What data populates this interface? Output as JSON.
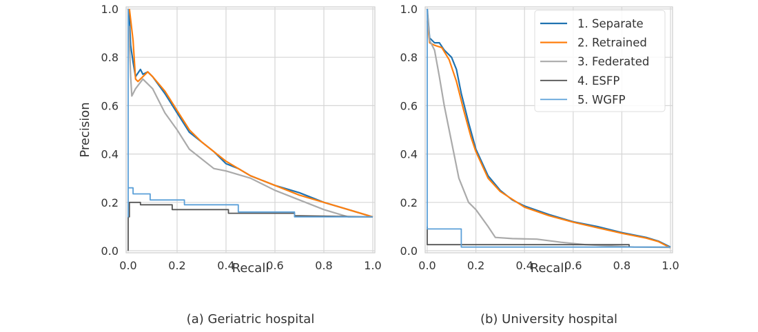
{
  "chart_data": [
    {
      "type": "line",
      "title": "(a) Geriatric hospital",
      "xlabel": "Recall",
      "ylabel": "Precision",
      "xlim": [
        0,
        1
      ],
      "ylim": [
        0,
        1
      ],
      "xticks": [
        "0.0",
        "0.2",
        "0.4",
        "0.6",
        "0.8",
        "1.0"
      ],
      "yticks": [
        "0.0",
        "0.2",
        "0.4",
        "0.6",
        "0.8",
        "1.0"
      ],
      "grid": true,
      "series": [
        {
          "name": "1. Separate",
          "color": "#1f72b0",
          "x": [
            0.003,
            0.01,
            0.02,
            0.03,
            0.05,
            0.06,
            0.08,
            0.1,
            0.15,
            0.2,
            0.25,
            0.3,
            0.35,
            0.4,
            0.45,
            0.5,
            0.6,
            0.7,
            0.8,
            0.9,
            1.0
          ],
          "y": [
            1.0,
            0.85,
            0.78,
            0.72,
            0.75,
            0.73,
            0.74,
            0.72,
            0.65,
            0.57,
            0.49,
            0.45,
            0.41,
            0.36,
            0.34,
            0.31,
            0.27,
            0.24,
            0.2,
            0.17,
            0.14
          ]
        },
        {
          "name": "2. Retrained",
          "color": "#ff7f0e",
          "x": [
            0.005,
            0.02,
            0.03,
            0.04,
            0.06,
            0.08,
            0.1,
            0.15,
            0.2,
            0.25,
            0.3,
            0.35,
            0.4,
            0.45,
            0.5,
            0.6,
            0.7,
            0.8,
            0.9,
            1.0
          ],
          "y": [
            1.0,
            0.87,
            0.71,
            0.7,
            0.72,
            0.74,
            0.72,
            0.66,
            0.58,
            0.5,
            0.45,
            0.41,
            0.37,
            0.34,
            0.31,
            0.27,
            0.23,
            0.2,
            0.17,
            0.14
          ]
        },
        {
          "name": "3. Federated",
          "color": "#aaaaaa",
          "x": [
            0.003,
            0.01,
            0.015,
            0.03,
            0.06,
            0.1,
            0.15,
            0.2,
            0.25,
            0.3,
            0.35,
            0.4,
            0.5,
            0.6,
            0.7,
            0.8,
            0.9,
            1.0
          ],
          "y": [
            0.93,
            0.72,
            0.64,
            0.67,
            0.71,
            0.67,
            0.57,
            0.5,
            0.42,
            0.38,
            0.34,
            0.33,
            0.3,
            0.25,
            0.21,
            0.17,
            0.14,
            0.14
          ]
        },
        {
          "name": "4. ESFP",
          "color": "#555555",
          "x": [
            0.0,
            0.0,
            0.005,
            0.005,
            0.01,
            0.01,
            0.05,
            0.05,
            0.18,
            0.18,
            0.41,
            0.41,
            0.68,
            0.68,
            1.0
          ],
          "y": [
            0.0,
            0.14,
            0.14,
            0.2,
            0.2,
            0.2,
            0.2,
            0.19,
            0.19,
            0.17,
            0.17,
            0.155,
            0.155,
            0.145,
            0.14
          ]
        },
        {
          "name": "5. WGFP",
          "color": "#5a9fd8",
          "x": [
            0.0,
            0.0,
            0.0,
            0.02,
            0.02,
            0.09,
            0.09,
            0.23,
            0.23,
            0.45,
            0.45,
            0.68,
            0.68,
            1.0
          ],
          "y": [
            1.0,
            0.14,
            0.26,
            0.26,
            0.235,
            0.235,
            0.21,
            0.21,
            0.19,
            0.19,
            0.16,
            0.16,
            0.14,
            0.14
          ]
        }
      ]
    },
    {
      "type": "line",
      "title": "(b) University hospital",
      "xlabel": "Recall",
      "ylabel": "",
      "xlim": [
        0,
        1
      ],
      "ylim": [
        0,
        1
      ],
      "xticks": [
        "0.0",
        "0.2",
        "0.4",
        "0.6",
        "0.8",
        "1.0"
      ],
      "yticks": [
        "0.0",
        "0.2",
        "0.4",
        "0.6",
        "0.8",
        "1.0"
      ],
      "grid": true,
      "legend": {
        "placement": "top-right",
        "entries": [
          "1. Separate",
          "2. Retrained",
          "3. Federated",
          "4. ESFP",
          "5. WGFP"
        ]
      },
      "series": [
        {
          "name": "1. Separate",
          "color": "#1f72b0",
          "x": [
            0,
            0.01,
            0.03,
            0.05,
            0.07,
            0.1,
            0.12,
            0.14,
            0.17,
            0.2,
            0.25,
            0.3,
            0.35,
            0.4,
            0.5,
            0.6,
            0.7,
            0.8,
            0.9,
            0.95,
            1.0
          ],
          "y": [
            1.0,
            0.88,
            0.86,
            0.86,
            0.83,
            0.8,
            0.75,
            0.65,
            0.53,
            0.42,
            0.31,
            0.25,
            0.21,
            0.185,
            0.15,
            0.12,
            0.1,
            0.075,
            0.055,
            0.04,
            0.015
          ]
        },
        {
          "name": "2. Retrained",
          "color": "#ff7f0e",
          "x": [
            0,
            0.01,
            0.03,
            0.06,
            0.09,
            0.12,
            0.15,
            0.18,
            0.2,
            0.25,
            0.3,
            0.4,
            0.5,
            0.6,
            0.7,
            0.8,
            0.9,
            0.95,
            1.0
          ],
          "y": [
            0.95,
            0.86,
            0.85,
            0.84,
            0.79,
            0.7,
            0.58,
            0.47,
            0.41,
            0.3,
            0.245,
            0.18,
            0.145,
            0.118,
            0.095,
            0.072,
            0.052,
            0.038,
            0.012
          ]
        },
        {
          "name": "3. Federated",
          "color": "#aaaaaa",
          "x": [
            0,
            0.01,
            0.03,
            0.05,
            0.07,
            0.1,
            0.13,
            0.17,
            0.2,
            0.25,
            0.28,
            0.35,
            0.45,
            0.55,
            0.65,
            0.75,
            0.85,
            1.0
          ],
          "y": [
            0.99,
            0.87,
            0.83,
            0.72,
            0.6,
            0.45,
            0.3,
            0.2,
            0.17,
            0.1,
            0.055,
            0.05,
            0.048,
            0.035,
            0.025,
            0.02,
            0.015,
            0.014
          ]
        },
        {
          "name": "4. ESFP",
          "color": "#555555",
          "x": [
            0,
            0,
            0.83,
            0.83
          ],
          "y": [
            0.1,
            0.025,
            0.025,
            0.015
          ]
        },
        {
          "name": "5. WGFP",
          "color": "#5a9fd8",
          "x": [
            0,
            0,
            0.14,
            0.14,
            1.0
          ],
          "y": [
            1.0,
            0.09,
            0.09,
            0.015,
            0.015
          ]
        }
      ]
    }
  ]
}
